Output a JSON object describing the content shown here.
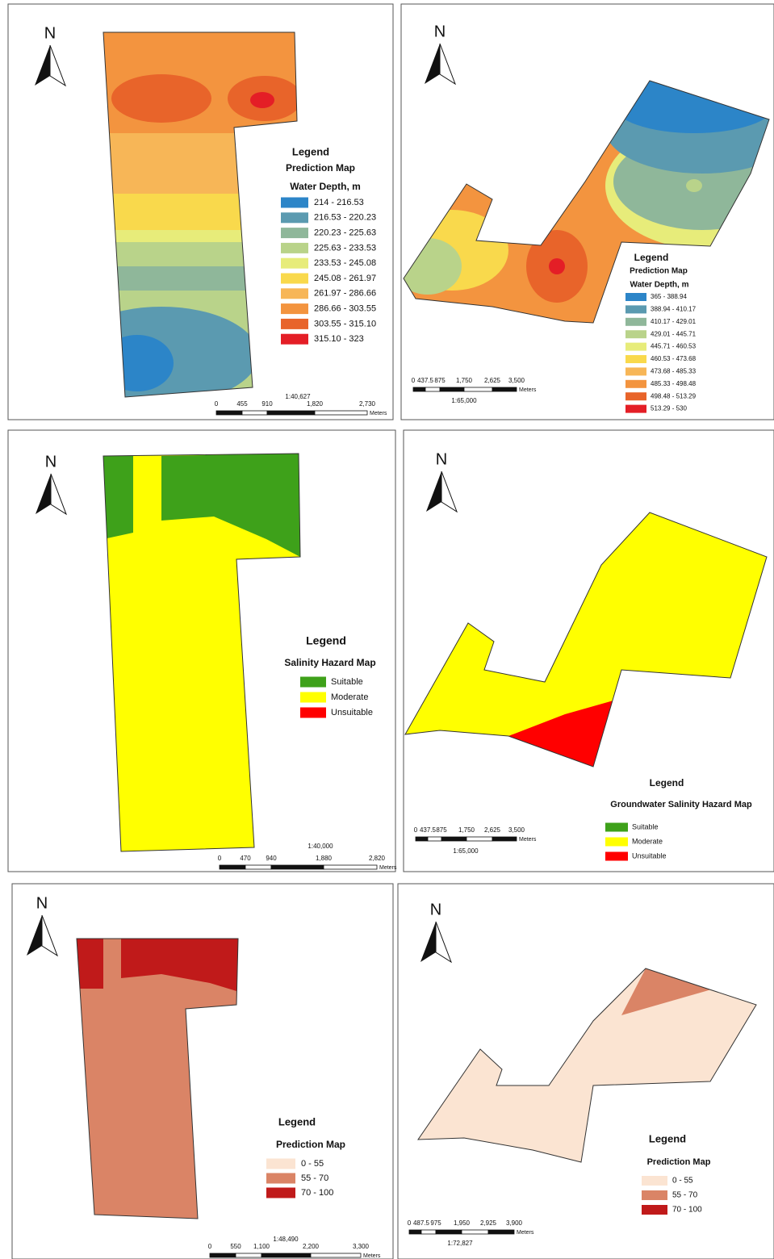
{
  "panels": [
    {
      "north": "N",
      "legend_title": "Legend",
      "map_title": "Prediction Map",
      "subtitle": "Water Depth, m",
      "classes": [
        {
          "label": "214 - 216.53",
          "color": "#2c85c8"
        },
        {
          "label": "216.53 - 220.23",
          "color": "#5b9ab0"
        },
        {
          "label": "220.23 - 225.63",
          "color": "#8fb79a"
        },
        {
          "label": "225.63 - 233.53",
          "color": "#b9d38a"
        },
        {
          "label": "233.53 - 245.08",
          "color": "#e7ec7a"
        },
        {
          "label": "245.08 - 261.97",
          "color": "#f9d94c"
        },
        {
          "label": "261.97 - 286.66",
          "color": "#f7b657"
        },
        {
          "label": "286.66 - 303.55",
          "color": "#f3943f"
        },
        {
          "label": "303.55 - 315.10",
          "color": "#e8642a"
        },
        {
          "label": "315.10 - 323",
          "color": "#e41e26"
        }
      ],
      "scale_labels": [
        "0",
        "455",
        "910",
        "1,820",
        "2,730"
      ],
      "scale_unit": "Meters",
      "scale_ratio": "1:40,627"
    },
    {
      "north": "N",
      "legend_title": "Legend",
      "map_title": "Prediction Map",
      "subtitle": "Water Depth, m",
      "classes": [
        {
          "label": "365 - 388.94",
          "color": "#2c85c8"
        },
        {
          "label": "388.94 - 410.17",
          "color": "#5b9ab0"
        },
        {
          "label": "410.17 - 429.01",
          "color": "#8fb79a"
        },
        {
          "label": "429.01 - 445.71",
          "color": "#b9d38a"
        },
        {
          "label": "445.71 - 460.53",
          "color": "#e7ec7a"
        },
        {
          "label": "460.53 - 473.68",
          "color": "#f9d94c"
        },
        {
          "label": "473.68 - 485.33",
          "color": "#f7b657"
        },
        {
          "label": "485.33 - 498.48",
          "color": "#f3943f"
        },
        {
          "label": "498.48 - 513.29",
          "color": "#e8642a"
        },
        {
          "label": "513.29 - 530",
          "color": "#e41e26"
        }
      ],
      "scale_labels": [
        "0",
        "437.5",
        "875",
        "1,750",
        "2,625",
        "3,500"
      ],
      "scale_unit": "Meters",
      "scale_ratio": "1:65,000"
    },
    {
      "north": "N",
      "legend_title": "Legend",
      "map_title": "Salinity Hazard Map",
      "classes": [
        {
          "label": "Suitable",
          "color": "#3ea11a"
        },
        {
          "label": "Moderate",
          "color": "#ffff00"
        },
        {
          "label": "Unsuitable",
          "color": "#ff0000"
        }
      ],
      "scale_labels": [
        "0",
        "470",
        "940",
        "1,880",
        "2,820"
      ],
      "scale_unit": "Meters",
      "scale_ratio": "1:40,000"
    },
    {
      "north": "N",
      "legend_title": "Legend",
      "map_title": "Groundwater Salinity Hazard Map",
      "classes": [
        {
          "label": "Suitable",
          "color": "#3ea11a"
        },
        {
          "label": "Moderate",
          "color": "#ffff00"
        },
        {
          "label": "Unsuitable",
          "color": "#ff0000"
        }
      ],
      "scale_labels": [
        "0",
        "437.5",
        "875",
        "1,750",
        "2,625",
        "3,500"
      ],
      "scale_unit": "Meters",
      "scale_ratio": "1:65,000"
    },
    {
      "north": "N",
      "legend_title": "Legend",
      "map_title": "Prediction Map",
      "classes": [
        {
          "label": "0 - 55",
          "color": "#fbe4d2"
        },
        {
          "label": "55 - 70",
          "color": "#da8466"
        },
        {
          "label": "70 - 100",
          "color": "#c01a1a"
        }
      ],
      "scale_labels": [
        "0",
        "550",
        "1,100",
        "2,200",
        "3,300"
      ],
      "scale_unit": "Meters",
      "scale_ratio": "1:48,490"
    },
    {
      "north": "N",
      "legend_title": "Legend",
      "map_title": "Prediction Map",
      "classes": [
        {
          "label": "0 - 55",
          "color": "#fbe4d2"
        },
        {
          "label": "55 - 70",
          "color": "#da8466"
        },
        {
          "label": "70 - 100",
          "color": "#c01a1a"
        }
      ],
      "scale_labels": [
        "0",
        "487.5",
        "975",
        "1,950",
        "2,925",
        "3,900"
      ],
      "scale_unit": "Meters",
      "scale_ratio": "1:72,827"
    }
  ]
}
